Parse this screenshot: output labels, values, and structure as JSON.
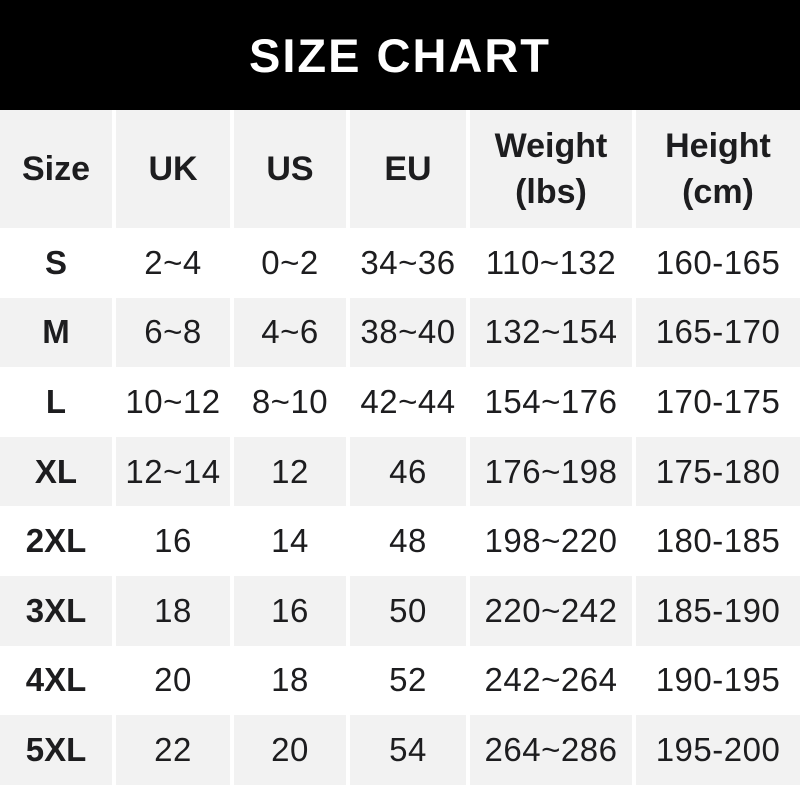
{
  "banner": {
    "title": "SIZE CHART"
  },
  "chart_data": {
    "type": "table",
    "title": "SIZE CHART",
    "header": [
      {
        "label": "Size",
        "sublabel": ""
      },
      {
        "label": "UK",
        "sublabel": ""
      },
      {
        "label": "US",
        "sublabel": ""
      },
      {
        "label": "EU",
        "sublabel": ""
      },
      {
        "label": "Weight",
        "sublabel": "(lbs)"
      },
      {
        "label": "Height",
        "sublabel": "(cm)"
      }
    ],
    "columns": [
      "Size",
      "UK",
      "US",
      "EU",
      "Weight (lbs)",
      "Height (cm)"
    ],
    "rows": [
      [
        "S",
        "2~4",
        "0~2",
        "34~36",
        "110~132",
        "160-165"
      ],
      [
        "M",
        "6~8",
        "4~6",
        "38~40",
        "132~154",
        "165-170"
      ],
      [
        "L",
        "10~12",
        "8~10",
        "42~44",
        "154~176",
        "170-175"
      ],
      [
        "XL",
        "12~14",
        "12",
        "46",
        "176~198",
        "175-180"
      ],
      [
        "2XL",
        "16",
        "14",
        "48",
        "198~220",
        "180-185"
      ],
      [
        "3XL",
        "18",
        "16",
        "50",
        "220~242",
        "185-190"
      ],
      [
        "4XL",
        "20",
        "18",
        "52",
        "242~264",
        "190-195"
      ],
      [
        "5XL",
        "22",
        "20",
        "54",
        "264~286",
        "195-200"
      ]
    ]
  },
  "colors": {
    "banner_bg": "#000000",
    "banner_text": "#ffffff",
    "row_stripe_bg": "#f2f2f2",
    "row_bg": "#ffffff",
    "separator": "#ffffff",
    "text": "#1d1d1f"
  }
}
